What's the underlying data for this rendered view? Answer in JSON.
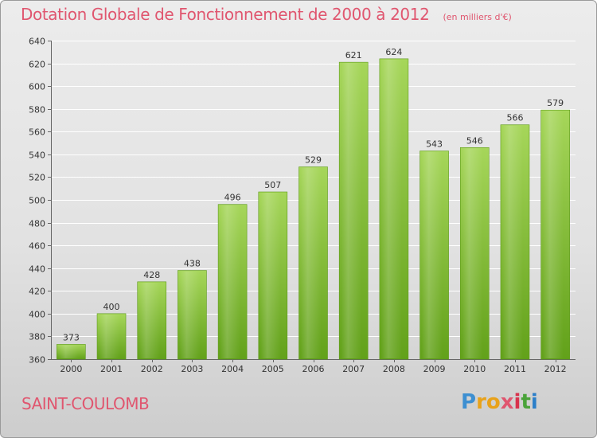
{
  "header": {
    "title": "Dotation Globale de Fonctionnement de 2000 à 2012",
    "subtitle": "(en milliers d'€)"
  },
  "footer": {
    "commune": "SAINT-COULOMB",
    "logo_text": "Proxiti",
    "logo_colors": [
      "#3d8fd1",
      "#e8a21a",
      "#e8a21a",
      "#e0566f",
      "#d8334d",
      "#4aa33a",
      "#2c7fc9"
    ]
  },
  "colors": {
    "bar_light": "#a6d65a",
    "bar_dark": "#62a11a",
    "title": "#e0566f"
  },
  "chart_data": {
    "type": "bar",
    "categories": [
      "2000",
      "2001",
      "2002",
      "2003",
      "2004",
      "2005",
      "2006",
      "2007",
      "2008",
      "2009",
      "2010",
      "2011",
      "2012"
    ],
    "values": [
      373,
      400,
      428,
      438,
      496,
      507,
      529,
      621,
      624,
      543,
      546,
      566,
      579
    ],
    "ylim": [
      360,
      640
    ],
    "yticks": [
      360,
      380,
      400,
      420,
      440,
      460,
      480,
      500,
      520,
      540,
      560,
      580,
      600,
      620,
      640
    ],
    "grid": true
  }
}
